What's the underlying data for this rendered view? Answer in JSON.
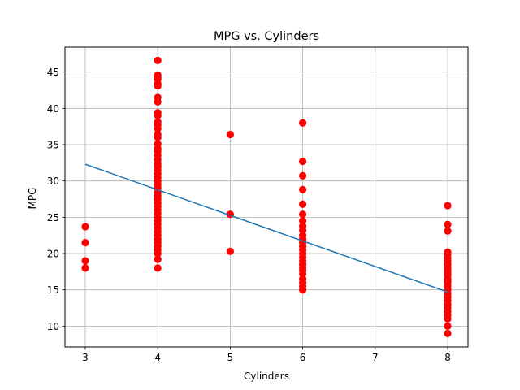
{
  "chart_data": {
    "type": "scatter",
    "title": "MPG vs. Cylinders",
    "xlabel": "Cylinders",
    "ylabel": "MPG",
    "xlim": [
      2.72,
      8.28
    ],
    "ylim": [
      7.13,
      48.43
    ],
    "xticks": [
      3,
      4,
      5,
      6,
      7,
      8
    ],
    "yticks": [
      10,
      15,
      20,
      25,
      30,
      35,
      40,
      45
    ],
    "grid": true,
    "colors": {
      "points": "#ff0000",
      "line": "#1f77b4",
      "grid": "#b0b0b0"
    },
    "series": [
      {
        "kind": "points",
        "points": [
          [
            3,
            23.7
          ],
          [
            3,
            21.5
          ],
          [
            3,
            19.0
          ],
          [
            3,
            18.0
          ],
          [
            4,
            46.6
          ],
          [
            4,
            44.6
          ],
          [
            4,
            44.3
          ],
          [
            4,
            44.0
          ],
          [
            4,
            43.4
          ],
          [
            4,
            43.1
          ],
          [
            4,
            41.5
          ],
          [
            4,
            40.9
          ],
          [
            4,
            39.4
          ],
          [
            4,
            39.0
          ],
          [
            4,
            38.1
          ],
          [
            4,
            37.7
          ],
          [
            4,
            37.2
          ],
          [
            4,
            36.4
          ],
          [
            4,
            36.0
          ],
          [
            4,
            35.1
          ],
          [
            4,
            34.5
          ],
          [
            4,
            34.1
          ],
          [
            4,
            33.5
          ],
          [
            4,
            32.9
          ],
          [
            4,
            32.4
          ],
          [
            4,
            32.0
          ],
          [
            4,
            31.5
          ],
          [
            4,
            31.0
          ],
          [
            4,
            30.5
          ],
          [
            4,
            30.0
          ],
          [
            4,
            29.5
          ],
          [
            4,
            29.0
          ],
          [
            4,
            28.4
          ],
          [
            4,
            28.0
          ],
          [
            4,
            27.5
          ],
          [
            4,
            27.0
          ],
          [
            4,
            26.5
          ],
          [
            4,
            26.0
          ],
          [
            4,
            25.5
          ],
          [
            4,
            25.0
          ],
          [
            4,
            24.5
          ],
          [
            4,
            24.0
          ],
          [
            4,
            23.5
          ],
          [
            4,
            23.0
          ],
          [
            4,
            22.5
          ],
          [
            4,
            22.0
          ],
          [
            4,
            21.5
          ],
          [
            4,
            21.0
          ],
          [
            4,
            20.5
          ],
          [
            4,
            20.0
          ],
          [
            4,
            19.2
          ],
          [
            4,
            18.0
          ],
          [
            5,
            36.4
          ],
          [
            5,
            25.4
          ],
          [
            5,
            20.3
          ],
          [
            6,
            38.0
          ],
          [
            6,
            32.7
          ],
          [
            6,
            30.7
          ],
          [
            6,
            28.8
          ],
          [
            6,
            26.8
          ],
          [
            6,
            25.4
          ],
          [
            6,
            24.5
          ],
          [
            6,
            23.8
          ],
          [
            6,
            23.2
          ],
          [
            6,
            22.5
          ],
          [
            6,
            22.0
          ],
          [
            6,
            21.5
          ],
          [
            6,
            21.0
          ],
          [
            6,
            20.5
          ],
          [
            6,
            20.0
          ],
          [
            6,
            19.5
          ],
          [
            6,
            19.0
          ],
          [
            6,
            18.5
          ],
          [
            6,
            18.1
          ],
          [
            6,
            17.7
          ],
          [
            6,
            17.2
          ],
          [
            6,
            16.5
          ],
          [
            6,
            16.0
          ],
          [
            6,
            15.5
          ],
          [
            6,
            15.0
          ],
          [
            8,
            26.6
          ],
          [
            8,
            24.0
          ],
          [
            8,
            23.1
          ],
          [
            8,
            20.2
          ],
          [
            8,
            19.9
          ],
          [
            8,
            19.4
          ],
          [
            8,
            19.0
          ],
          [
            8,
            18.5
          ],
          [
            8,
            18.1
          ],
          [
            8,
            17.7
          ],
          [
            8,
            17.3
          ],
          [
            8,
            17.0
          ],
          [
            8,
            16.5
          ],
          [
            8,
            16.2
          ],
          [
            8,
            16.0
          ],
          [
            8,
            15.5
          ],
          [
            8,
            15.0
          ],
          [
            8,
            14.5
          ],
          [
            8,
            14.0
          ],
          [
            8,
            13.5
          ],
          [
            8,
            13.0
          ],
          [
            8,
            12.5
          ],
          [
            8,
            12.0
          ],
          [
            8,
            11.5
          ],
          [
            8,
            11.0
          ],
          [
            8,
            10.0
          ],
          [
            8,
            9.0
          ]
        ]
      },
      {
        "kind": "regression-line",
        "x": [
          3,
          8
        ],
        "y": [
          32.3,
          14.7
        ]
      }
    ]
  }
}
